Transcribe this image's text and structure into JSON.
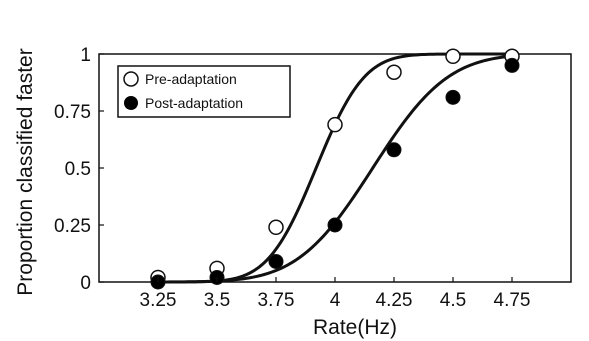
{
  "chart_data": {
    "type": "scatter",
    "title": "",
    "xlabel": "Rate(Hz)",
    "ylabel": "Proportion classified faster",
    "xlim": [
      3.0,
      5.0
    ],
    "ylim": [
      0,
      1
    ],
    "xticks": [
      "3.25",
      "3.5",
      "3.75",
      "4",
      "4.25",
      "4.5",
      "4.75"
    ],
    "xtick_values": [
      3.25,
      3.5,
      3.75,
      4.0,
      4.25,
      4.5,
      4.75
    ],
    "yticks": [
      "0",
      "0.25",
      "0.5",
      "0.75",
      "1"
    ],
    "ytick_values": [
      0,
      0.25,
      0.5,
      0.75,
      1
    ],
    "grid": false,
    "legend_position": "top-left",
    "series": [
      {
        "name": "Pre-adaptation",
        "marker": "open-circle",
        "x": [
          3.25,
          3.5,
          3.75,
          4.0,
          4.25,
          4.5,
          4.75
        ],
        "y": [
          0.02,
          0.06,
          0.24,
          0.69,
          0.92,
          0.99,
          0.99
        ],
        "fit": {
          "mu": 3.92,
          "sigma": 0.16
        }
      },
      {
        "name": "Post-adaptation",
        "marker": "filled-circle",
        "x": [
          3.25,
          3.5,
          3.75,
          4.0,
          4.25,
          4.5,
          4.75
        ],
        "y": [
          0.0,
          0.02,
          0.09,
          0.25,
          0.58,
          0.81,
          0.95
        ],
        "fit": {
          "mu": 4.16,
          "sigma": 0.25
        }
      }
    ],
    "colors": {
      "line": "#111111",
      "marker_fill": "#000000",
      "open_marker_fill": "#ffffff",
      "axis": "#111111"
    }
  }
}
